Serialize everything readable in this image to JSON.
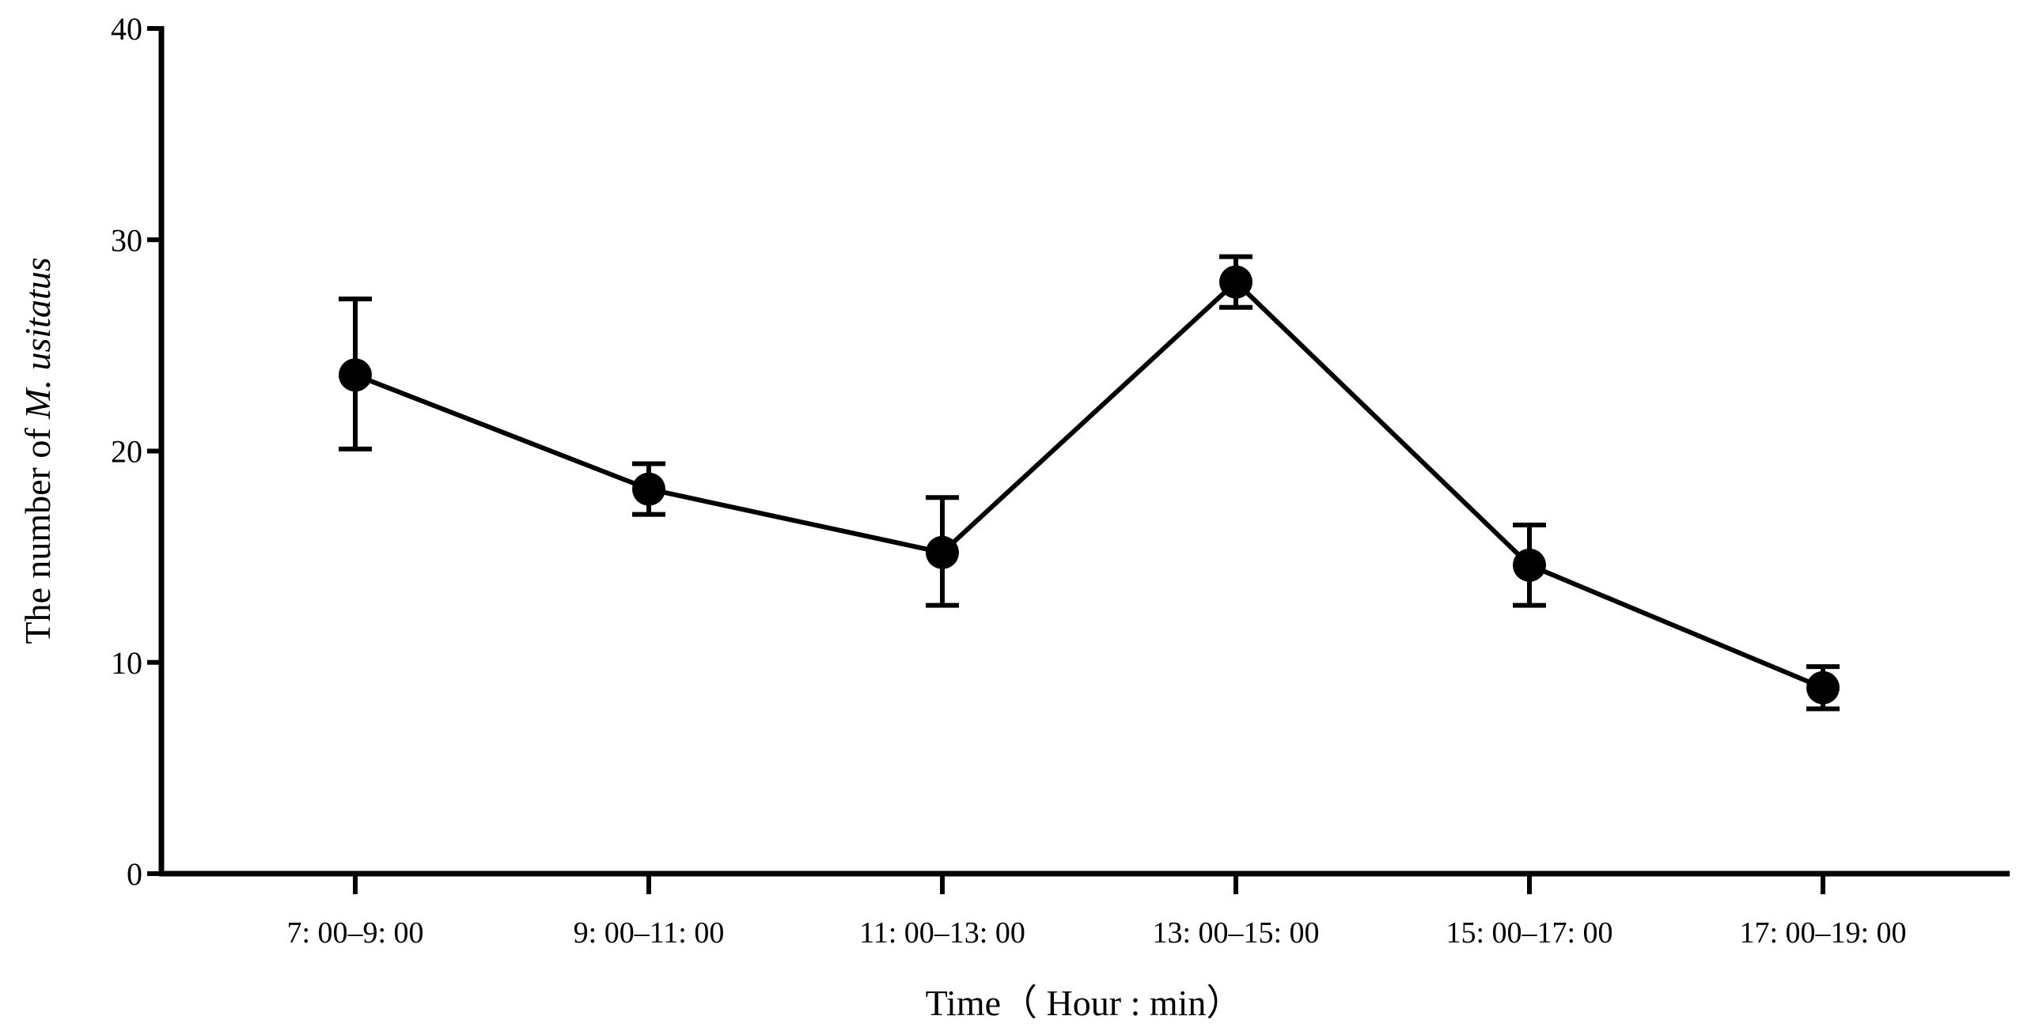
{
  "chart_data": {
    "type": "line",
    "title": "",
    "xlabel": "Time（ Hour : min）",
    "ylabel_prefix": "The number of ",
    "ylabel_italic": "M. usitatus",
    "ylim": [
      0,
      40
    ],
    "yticks": [
      0,
      10,
      20,
      30,
      40
    ],
    "grid": false,
    "categories": [
      "7: 00–9: 00",
      "9: 00–11: 00",
      "11: 00–13: 00",
      "13: 00–15: 00",
      "15: 00–17: 00",
      "17: 00–19: 00"
    ],
    "series": [
      {
        "name": "M. usitatus",
        "values": [
          23.6,
          18.2,
          15.2,
          28.0,
          14.6,
          8.8
        ],
        "error_low": [
          20.1,
          17.0,
          12.7,
          26.8,
          12.7,
          7.8
        ],
        "error_high": [
          27.2,
          19.4,
          17.8,
          29.2,
          16.5,
          9.8
        ],
        "color": "#000000"
      }
    ]
  }
}
